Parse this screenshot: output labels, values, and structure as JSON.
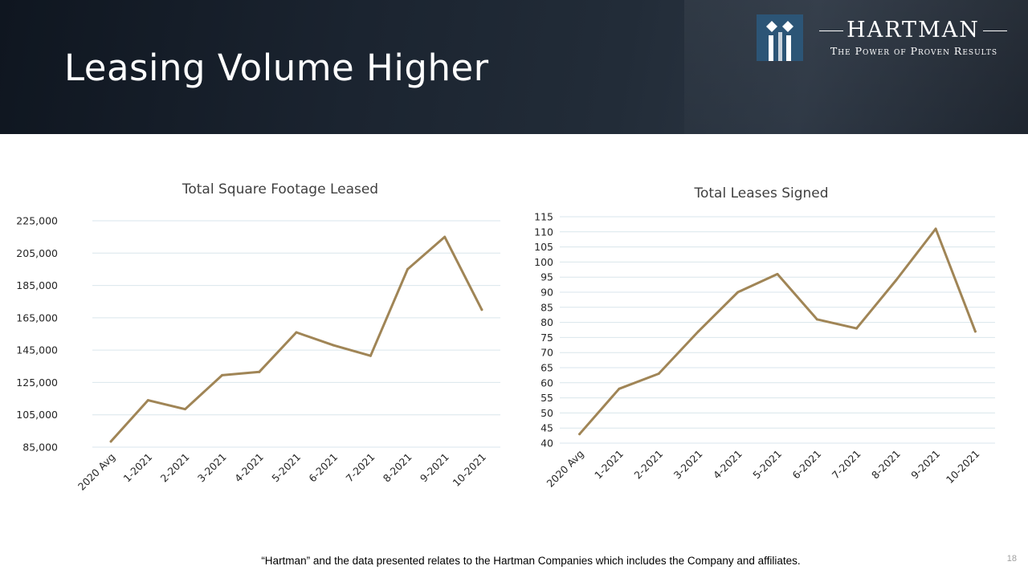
{
  "header": {
    "title": "Leasing Volume Higher",
    "logo": {
      "name": "HARTMAN",
      "tagline": "The Power of Proven Results",
      "mark_color": "#2c5576",
      "mark_icon": "diamond-columns-icon"
    }
  },
  "colors": {
    "line": "#a08556",
    "gridline": "#d9e6ec",
    "banner": "#1b2430"
  },
  "chart_data": [
    {
      "type": "line",
      "title": "Total Square Footage Leased",
      "xlabel": "",
      "ylabel": "",
      "categories": [
        "2020 Avg",
        "1-2021",
        "2-2021",
        "3-2021",
        "4-2021",
        "5-2021",
        "6-2021",
        "7-2021",
        "8-2021",
        "9-2021",
        "10-2021"
      ],
      "series": [
        {
          "values": [
            88500,
            114000,
            108500,
            129500,
            131500,
            156000,
            148000,
            141500,
            195000,
            215000,
            170000
          ]
        }
      ],
      "ylim": [
        85000,
        225000
      ],
      "yticks": [
        "85,000",
        "105,000",
        "125,000",
        "145,000",
        "165,000",
        "185,000",
        "205,000",
        "225,000"
      ],
      "grid": true,
      "legend": "none"
    },
    {
      "type": "line",
      "title": "Total Leases Signed",
      "xlabel": "",
      "ylabel": "",
      "categories": [
        "2020 Avg",
        "1-2021",
        "2-2021",
        "3-2021",
        "4-2021",
        "5-2021",
        "6-2021",
        "7-2021",
        "8-2021",
        "9-2021",
        "10-2021"
      ],
      "series": [
        {
          "values": [
            43,
            58,
            63,
            77,
            90,
            96,
            81,
            78,
            94,
            111,
            77
          ]
        }
      ],
      "ylim": [
        40,
        115
      ],
      "yticks": [
        "40",
        "45",
        "50",
        "55",
        "60",
        "65",
        "70",
        "75",
        "80",
        "85",
        "90",
        "95",
        "100",
        "105",
        "110",
        "115"
      ],
      "grid": true,
      "legend": "none"
    }
  ],
  "footer": {
    "disclaimer": "“Hartman”  and the data presented relates to the Hartman Companies which includes the Company and affiliates.",
    "page_number": "18"
  }
}
